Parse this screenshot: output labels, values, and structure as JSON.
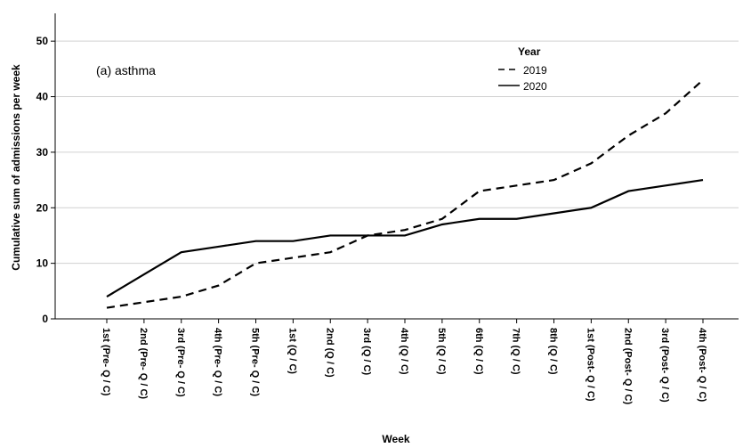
{
  "chart_data": {
    "type": "line",
    "annotation": "(a) asthma",
    "x_label": "Week",
    "y_label": "Cumulative sum of admissions per week",
    "legend_title": "Year",
    "legend_position": "top-right",
    "grid": true,
    "categories": [
      "1st (Pre- Q / C)",
      "2nd (Pre- Q / C)",
      "3rd (Pre- Q / C)",
      "4th (Pre- Q / C)",
      "5th (Pre- Q / C)",
      "1st (Q / C)",
      "2nd (Q / C)",
      "3rd (Q / C)",
      "4th (Q / C)",
      "5th (Q / C)",
      "6th (Q / C)",
      "7th (Q / C)",
      "8th (Q / C)",
      "1st (Post- Q / C)",
      "2nd (Post- Q / C)",
      "3rd (Post- Q / C)",
      "4th (Post- Q / C)"
    ],
    "series": [
      {
        "name": "2019",
        "color": "#000000",
        "line_style": "dashed",
        "values": [
          2,
          3,
          4,
          6,
          10,
          11,
          12,
          15,
          16,
          18,
          23,
          24,
          25,
          28,
          33,
          37,
          43
        ]
      },
      {
        "name": "2020",
        "color": "#000000",
        "line_style": "solid",
        "values": [
          4,
          8,
          12,
          13,
          14,
          14,
          15,
          15,
          15,
          17,
          18,
          18,
          19,
          20,
          23,
          24,
          25
        ]
      }
    ],
    "ylim": [
      0,
      55
    ],
    "yticks": [
      0,
      10,
      20,
      30,
      40,
      50
    ]
  }
}
